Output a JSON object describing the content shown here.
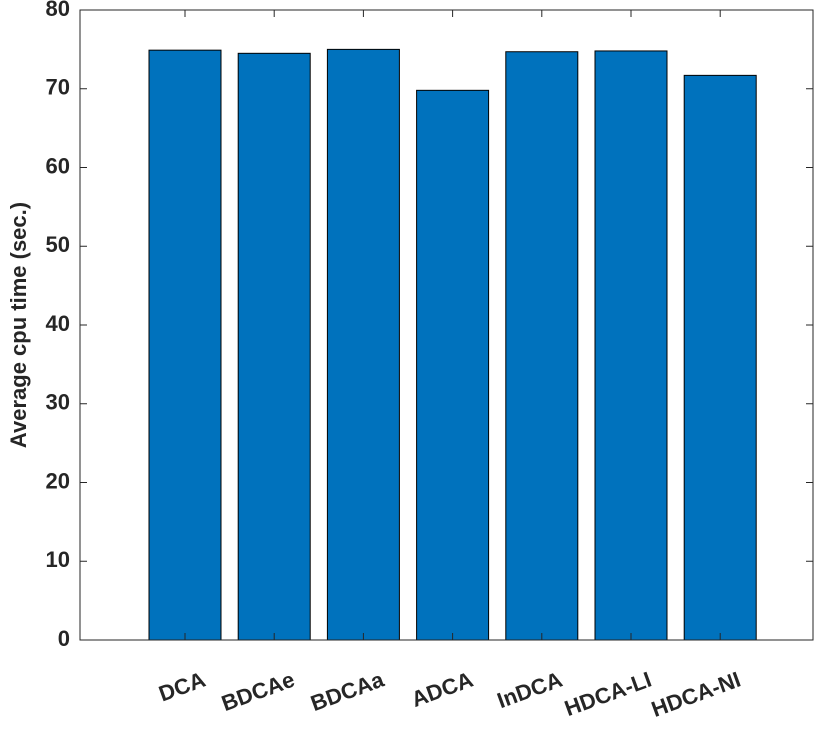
{
  "chart_data": {
    "type": "bar",
    "ylabel": "Average cpu time (sec.)",
    "categories": [
      "DCA",
      "BDCAe",
      "BDCAa",
      "ADCA",
      "InDCA",
      "HDCA-LI",
      "HDCA-NI"
    ],
    "values": [
      74.9,
      74.5,
      75.0,
      69.8,
      74.7,
      74.8,
      71.7
    ],
    "color": "#0072bd",
    "ylim": [
      0,
      80
    ],
    "yticks": [
      0,
      10,
      20,
      30,
      40,
      50,
      60,
      70,
      80
    ],
    "grid": false
  }
}
